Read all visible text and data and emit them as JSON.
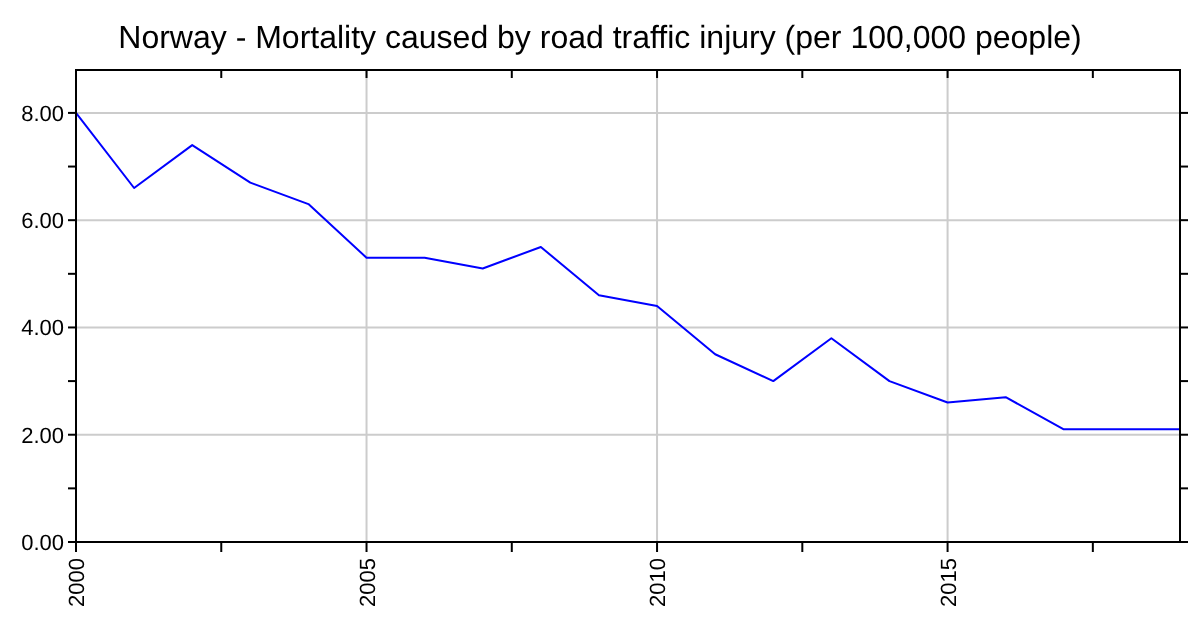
{
  "chart_data": {
    "type": "line",
    "title": "Norway - Mortality caused by road traffic injury (per 100,000 people)",
    "x": [
      2000,
      2001,
      2002,
      2003,
      2004,
      2005,
      2006,
      2007,
      2008,
      2009,
      2010,
      2011,
      2012,
      2013,
      2014,
      2015,
      2016,
      2017,
      2018,
      2019
    ],
    "series": [
      {
        "color": "#0000ff",
        "values": [
          8.0,
          6.6,
          7.4,
          6.7,
          6.3,
          5.3,
          5.3,
          5.1,
          5.5,
          4.6,
          4.4,
          3.5,
          3.0,
          3.8,
          3.0,
          2.6,
          2.7,
          2.1,
          2.1,
          2.1
        ]
      }
    ],
    "xlim": [
      2000,
      2019
    ],
    "xticks": [
      2000,
      {
        "value": 2002.5,
        "label": null
      },
      2005,
      {
        "value": 2007.5,
        "label": null
      },
      2010,
      {
        "value": 2012.5,
        "label": null
      },
      2015,
      {
        "value": 2017.5,
        "label": null
      }
    ],
    "ylim": [
      0,
      8.8
    ],
    "yticks": [
      "0.00",
      {
        "value": 1,
        "label": null
      },
      {
        "value": 2,
        "label": "2.00"
      },
      {
        "value": 3,
        "label": null
      },
      {
        "value": 4,
        "label": "4.00"
      },
      {
        "value": 5,
        "label": null
      },
      {
        "value": 6,
        "label": "6.00"
      },
      {
        "value": 7,
        "label": null
      },
      {
        "value": 8,
        "label": "8.00"
      }
    ],
    "grid": true,
    "marker": "none",
    "line_style": "solid"
  }
}
